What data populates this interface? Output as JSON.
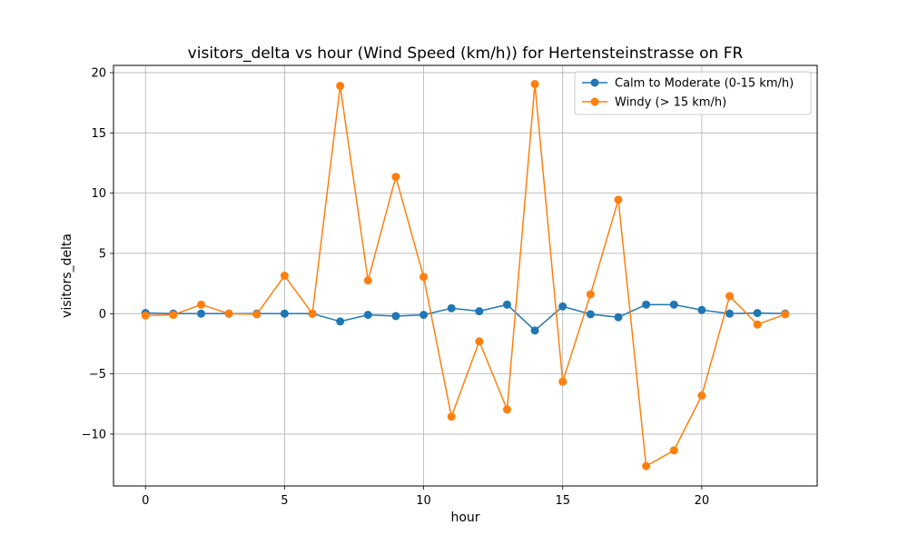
{
  "chart_data": {
    "type": "line",
    "title": "visitors_delta vs hour (Wind Speed (km/h)) for Hertensteinstrasse on FR",
    "xlabel": "hour",
    "ylabel": "visitors_delta",
    "xlim": [
      -1.15,
      24.15
    ],
    "ylim": [
      -14.3,
      20.6
    ],
    "xticks": [
      0,
      5,
      10,
      15,
      20
    ],
    "xtick_labels": [
      "0",
      "5",
      "10",
      "15",
      "20"
    ],
    "yticks": [
      -10,
      -5,
      0,
      5,
      10,
      15,
      20
    ],
    "ytick_labels": [
      "−10",
      "−5",
      "0",
      "5",
      "10",
      "15",
      "20"
    ],
    "grid": true,
    "legend_position": "top-right",
    "x": [
      0,
      1,
      2,
      3,
      4,
      5,
      6,
      7,
      8,
      9,
      10,
      11,
      12,
      13,
      14,
      15,
      16,
      17,
      18,
      19,
      20,
      21,
      22,
      23
    ],
    "series": [
      {
        "name": "Calm to Moderate (0-15 km/h)",
        "color": "#1f77b4",
        "values": [
          0.05,
          0.0,
          0.0,
          0.0,
          0.0,
          0.0,
          0.0,
          -0.65,
          -0.1,
          -0.2,
          -0.1,
          0.45,
          0.2,
          0.75,
          -1.4,
          0.6,
          -0.05,
          -0.3,
          0.75,
          0.75,
          0.3,
          0.0,
          0.05,
          0.0
        ]
      },
      {
        "name": "Windy (> 15 km/h)",
        "color": "#ff7f0e",
        "values": [
          -0.15,
          -0.1,
          0.75,
          0.0,
          -0.05,
          3.15,
          0.0,
          18.9,
          2.75,
          11.35,
          3.05,
          -8.55,
          -2.3,
          -7.95,
          19.05,
          -5.65,
          1.6,
          9.45,
          -12.65,
          -11.35,
          -6.8,
          1.45,
          -0.9,
          -0.05
        ]
      }
    ]
  }
}
